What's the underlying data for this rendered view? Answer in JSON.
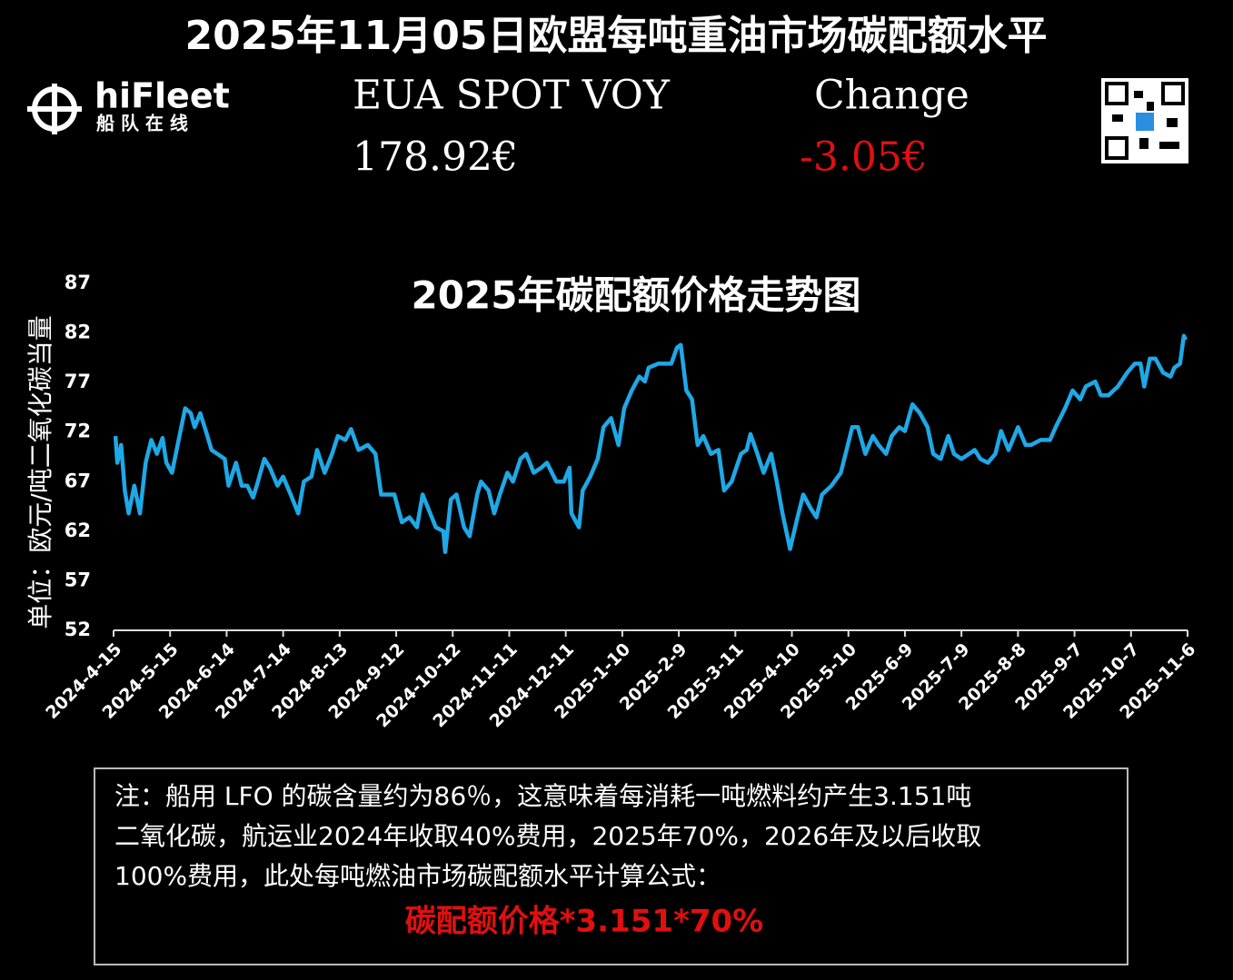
{
  "header": {
    "title": "2025年11月05日欧盟每吨重油市场碳配额水平",
    "logo": "hiFleet",
    "logo_subtitle": "船 队 在 线",
    "price_label": "EUA SPOT VOY",
    "price": "178.92€",
    "change_label": "Change",
    "change": "-3.05€"
  },
  "chart_data": {
    "type": "line",
    "title": "2025年碳配额价格走势图",
    "ylabel": "单位：欧元/吨二氧化碳当量",
    "xlim": [
      "2024-4-15",
      "2025-11-6"
    ],
    "xticks": [
      "2024-4-15",
      "2024-5-15",
      "2024-6-14",
      "2024-7-14",
      "2024-8-13",
      "2024-9-12",
      "2024-10-12",
      "2024-11-11",
      "2024-12-11",
      "2025-1-10",
      "2025-2-9",
      "2025-3-11",
      "2025-4-10",
      "2025-5-10",
      "2025-6-9",
      "2025-7-9",
      "2025-8-8",
      "2025-9-7",
      "2025-10-7",
      "2025-11-6"
    ],
    "ylim": [
      52,
      87
    ],
    "yticks": [
      52,
      57,
      62,
      67,
      72,
      77,
      82,
      87
    ],
    "x": [
      "2024-4-16",
      "2024-4-17",
      "2024-4-19",
      "2024-4-21",
      "2024-4-23",
      "2024-4-26",
      "2024-4-29",
      "2024-5-2",
      "2024-5-5",
      "2024-5-8",
      "2024-5-11",
      "2024-5-13",
      "2024-5-16",
      "2024-5-19",
      "2024-5-23",
      "2024-5-26",
      "2024-5-28",
      "2024-5-31",
      "2024-6-3",
      "2024-6-6",
      "2024-6-9",
      "2024-6-13",
      "2024-6-15",
      "2024-6-19",
      "2024-6-22",
      "2024-6-25",
      "2024-6-28",
      "2024-6-30",
      "2024-7-4",
      "2024-7-7",
      "2024-7-11",
      "2024-7-14",
      "2024-7-18",
      "2024-7-22",
      "2024-7-25",
      "2024-7-29",
      "2024-8-1",
      "2024-8-5",
      "2024-8-9",
      "2024-8-12",
      "2024-8-16",
      "2024-8-19",
      "2024-8-23",
      "2024-8-28",
      "2024-9-1",
      "2024-9-4",
      "2024-9-8",
      "2024-9-11",
      "2024-9-15",
      "2024-9-19",
      "2024-9-23",
      "2024-9-26",
      "2024-9-29",
      "2024-10-3",
      "2024-10-7",
      "2024-10-8",
      "2024-10-11",
      "2024-10-14",
      "2024-10-18",
      "2024-10-21",
      "2024-10-25",
      "2024-10-27",
      "2024-10-31",
      "2024-11-3",
      "2024-11-6",
      "2024-11-10",
      "2024-11-13",
      "2024-11-17",
      "2024-11-20",
      "2024-11-24",
      "2024-11-28",
      "2024-12-1",
      "2024-12-6",
      "2024-12-10",
      "2024-12-13",
      "2024-12-14",
      "2024-12-18",
      "2024-12-20",
      "2024-12-24",
      "2024-12-28",
      "2024-12-31",
      "2025-1-4",
      "2025-1-8",
      "2025-1-11",
      "2025-1-15",
      "2025-1-19",
      "2025-1-22",
      "2025-1-24",
      "2025-1-29",
      "2025-2-5",
      "2025-2-8",
      "2025-2-10",
      "2025-2-13",
      "2025-2-16",
      "2025-2-19",
      "2025-2-22",
      "2025-2-26",
      "2025-3-2",
      "2025-3-5",
      "2025-3-9",
      "2025-3-14",
      "2025-3-17",
      "2025-3-19",
      "2025-3-22",
      "2025-3-26",
      "2025-3-30",
      "2025-4-2",
      "2025-4-5",
      "2025-4-9",
      "2025-4-13",
      "2025-4-16",
      "2025-4-20",
      "2025-4-23",
      "2025-4-26",
      "2025-5-1",
      "2025-5-6",
      "2025-5-9",
      "2025-5-12",
      "2025-5-15",
      "2025-5-19",
      "2025-5-23",
      "2025-5-26",
      "2025-5-30",
      "2025-6-2",
      "2025-6-6",
      "2025-6-9",
      "2025-6-13",
      "2025-6-17",
      "2025-6-21",
      "2025-6-24",
      "2025-6-28",
      "2025-7-2",
      "2025-7-5",
      "2025-7-9",
      "2025-7-13",
      "2025-7-16",
      "2025-7-19",
      "2025-7-23",
      "2025-7-27",
      "2025-7-30",
      "2025-8-3",
      "2025-8-8",
      "2025-8-12",
      "2025-8-15",
      "2025-8-20",
      "2025-8-25",
      "2025-8-28",
      "2025-9-2",
      "2025-9-6",
      "2025-9-10",
      "2025-9-13",
      "2025-9-18",
      "2025-9-21",
      "2025-9-25",
      "2025-9-30",
      "2025-10-5",
      "2025-10-9",
      "2025-10-12",
      "2025-10-14",
      "2025-10-17",
      "2025-10-20",
      "2025-10-24",
      "2025-10-28",
      "2025-10-30",
      "2025-11-2",
      "2025-11-4",
      "2025-11-5"
    ],
    "series": [
      {
        "name": "EUA",
        "color": "#1fa8e6",
        "values": [
          71.6,
          68.9,
          70.7,
          66.1,
          63.8,
          66.6,
          63.8,
          68.9,
          71.2,
          69.8,
          71.4,
          68.9,
          67.9,
          70.7,
          74.4,
          73.9,
          72.5,
          73.9,
          72.1,
          70.2,
          69.8,
          69.3,
          66.6,
          68.9,
          66.6,
          66.6,
          65.4,
          66.6,
          69.3,
          68.4,
          66.6,
          67.5,
          65.7,
          63.8,
          67.0,
          67.5,
          70.2,
          67.9,
          69.8,
          71.6,
          71.2,
          72.3,
          70.2,
          70.7,
          69.8,
          65.7,
          65.7,
          65.7,
          62.9,
          63.4,
          62.4,
          65.7,
          64.3,
          62.4,
          62.0,
          59.9,
          65.2,
          65.7,
          62.4,
          61.5,
          65.7,
          67.0,
          66.1,
          63.8,
          65.7,
          67.9,
          67.0,
          69.3,
          69.8,
          67.9,
          68.4,
          68.9,
          67.0,
          67.0,
          68.4,
          63.8,
          62.4,
          66.1,
          67.5,
          69.3,
          72.5,
          73.4,
          70.7,
          74.4,
          76.2,
          77.6,
          77.1,
          78.5,
          78.9,
          78.9,
          80.5,
          80.8,
          76.2,
          75.3,
          70.7,
          71.6,
          69.8,
          70.2,
          66.1,
          67.0,
          69.8,
          70.2,
          71.8,
          70.2,
          67.9,
          69.8,
          67.0,
          63.8,
          60.2,
          63.4,
          65.7,
          64.3,
          63.4,
          65.7,
          66.6,
          67.9,
          70.2,
          72.5,
          72.5,
          69.8,
          71.6,
          70.7,
          69.8,
          71.6,
          72.5,
          72.1,
          74.8,
          73.9,
          72.5,
          69.8,
          69.3,
          71.6,
          69.8,
          69.3,
          69.8,
          70.2,
          69.3,
          68.9,
          69.8,
          72.1,
          70.2,
          72.5,
          70.7,
          70.7,
          71.2,
          71.2,
          72.5,
          74.4,
          76.2,
          75.3,
          76.6,
          77.1,
          75.7,
          75.7,
          76.6,
          78.0,
          78.9,
          78.9,
          76.6,
          79.4,
          79.4,
          78.0,
          77.6,
          78.5,
          78.9,
          81.7,
          81.3
        ]
      }
    ]
  },
  "note": {
    "lines": [
      "注：船用 LFO 的碳含量约为86％，这意味着每消耗一吨燃料约产生3.151吨",
      "二氧化碳，航运业2024年收取40%费用，2025年70%，2026年及以后收取",
      "100%费用，此处每吨燃油市场碳配额水平计算公式："
    ],
    "formula": "碳配额价格*3.151*70%"
  }
}
